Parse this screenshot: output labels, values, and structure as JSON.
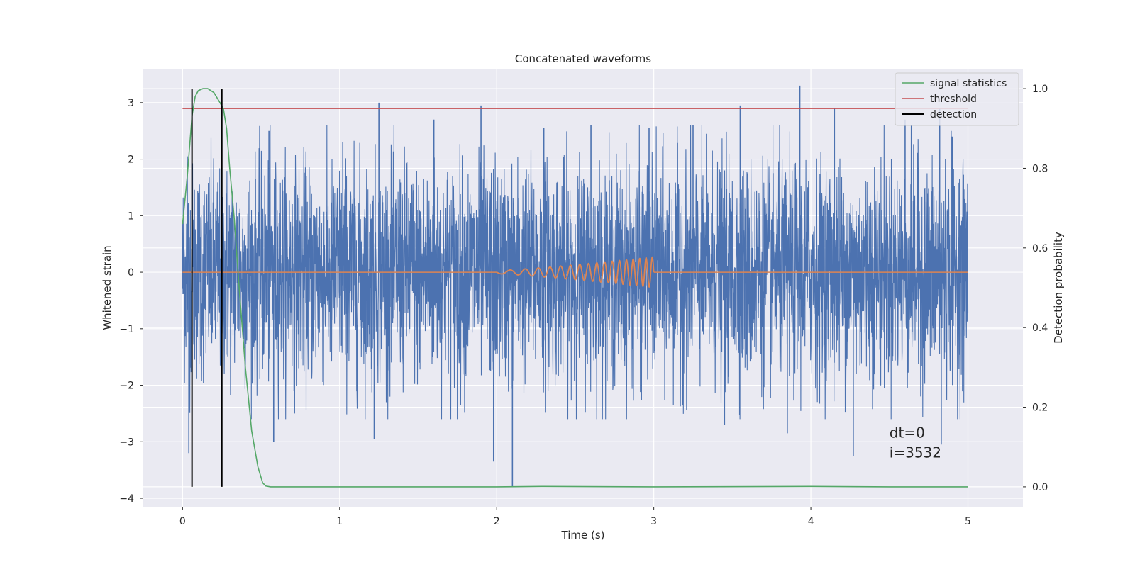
{
  "chart_data": {
    "type": "line",
    "title": "Concatenated waveforms",
    "xlabel": "Time (s)",
    "ylabel": "Whitened strain",
    "ylabel_right": "Detection probability",
    "xlim": [
      -0.25,
      5.35
    ],
    "ylim": [
      -4.15,
      3.6
    ],
    "ylim_right": [
      -0.05,
      1.05
    ],
    "x_ticks": [
      0,
      1,
      2,
      3,
      4,
      5
    ],
    "x_tick_labels": [
      "0",
      "1",
      "2",
      "3",
      "4",
      "5"
    ],
    "y_ticks": [
      -4,
      -3,
      -2,
      -1,
      0,
      1,
      2,
      3
    ],
    "y_tick_labels": [
      "−4",
      "−3",
      "−2",
      "−1",
      "0",
      "1",
      "2",
      "3"
    ],
    "y_ticks_right": [
      0.0,
      0.2,
      0.4,
      0.6,
      0.8,
      1.0
    ],
    "y_tick_labels_right": [
      "0.0",
      "0.2",
      "0.4",
      "0.6",
      "0.8",
      "1.0"
    ],
    "grid": true,
    "legend_position": "top-right",
    "series": [
      {
        "name": "",
        "role": "whitened-strain",
        "color": "#4c72b0",
        "x_range": [
          0,
          5
        ],
        "samples": 4000,
        "std": 0.95
      },
      {
        "name": "",
        "role": "injected-chirp",
        "color": "#dd8452",
        "chirp_start": 2.0,
        "chirp_end": 3.0,
        "chirp_max_amplitude": 0.27
      },
      {
        "name": "signal statistics",
        "role": "probability",
        "color": "#55a868",
        "axis": "right",
        "x": [
          0,
          0.03,
          0.06,
          0.08,
          0.1,
          0.13,
          0.16,
          0.2,
          0.23,
          0.26,
          0.28,
          0.3,
          0.33,
          0.36,
          0.4,
          0.44,
          0.48,
          0.51,
          0.53,
          0.56,
          0.6,
          1.0,
          2.0,
          2.3,
          3.0,
          4.0,
          4.5,
          5.0
        ],
        "y": [
          0.66,
          0.78,
          0.93,
          0.98,
          0.995,
          1.0,
          1.0,
          0.99,
          0.97,
          0.95,
          0.9,
          0.8,
          0.67,
          0.5,
          0.3,
          0.14,
          0.05,
          0.01,
          0.002,
          0.0,
          0.0,
          0.0,
          0.0,
          0.001,
          0.0,
          0.001,
          0.0,
          0.0
        ]
      },
      {
        "name": "threshold",
        "role": "threshold",
        "color": "#c44e52",
        "axis": "right",
        "value": 0.95,
        "x_range": [
          0,
          5
        ]
      },
      {
        "name": "detection",
        "role": "detection",
        "color": "#000000",
        "x_values": [
          0.06,
          0.25
        ]
      }
    ],
    "spikes": [
      {
        "x": 0.03,
        "y": 2.05
      },
      {
        "x": 0.04,
        "y": -3.2
      },
      {
        "x": 0.25,
        "y": 2.1
      },
      {
        "x": 0.55,
        "y": 2.5
      },
      {
        "x": 0.58,
        "y": -3.0
      },
      {
        "x": 1.02,
        "y": 2.3
      },
      {
        "x": 1.25,
        "y": 3.0
      },
      {
        "x": 1.22,
        "y": -2.95
      },
      {
        "x": 1.6,
        "y": 2.7
      },
      {
        "x": 1.75,
        "y": -2.6
      },
      {
        "x": 1.9,
        "y": 2.95
      },
      {
        "x": 1.98,
        "y": -3.35
      },
      {
        "x": 2.1,
        "y": -3.8
      },
      {
        "x": 2.3,
        "y": 2.55
      },
      {
        "x": 2.6,
        "y": 2.6
      },
      {
        "x": 2.97,
        "y": 2.55
      },
      {
        "x": 3.25,
        "y": 2.6
      },
      {
        "x": 3.45,
        "y": -2.7
      },
      {
        "x": 3.55,
        "y": 2.95
      },
      {
        "x": 3.85,
        "y": -2.85
      },
      {
        "x": 3.93,
        "y": 3.3
      },
      {
        "x": 4.15,
        "y": 2.9
      },
      {
        "x": 4.27,
        "y": -3.25
      },
      {
        "x": 4.6,
        "y": 2.7
      },
      {
        "x": 4.82,
        "y": 2.9
      },
      {
        "x": 4.83,
        "y": -3.05
      },
      {
        "x": 4.9,
        "y": 2.4
      }
    ],
    "annotation": {
      "line1": "dt=0",
      "line2": "i=3532",
      "x": 4.5,
      "y": -3.0
    }
  }
}
